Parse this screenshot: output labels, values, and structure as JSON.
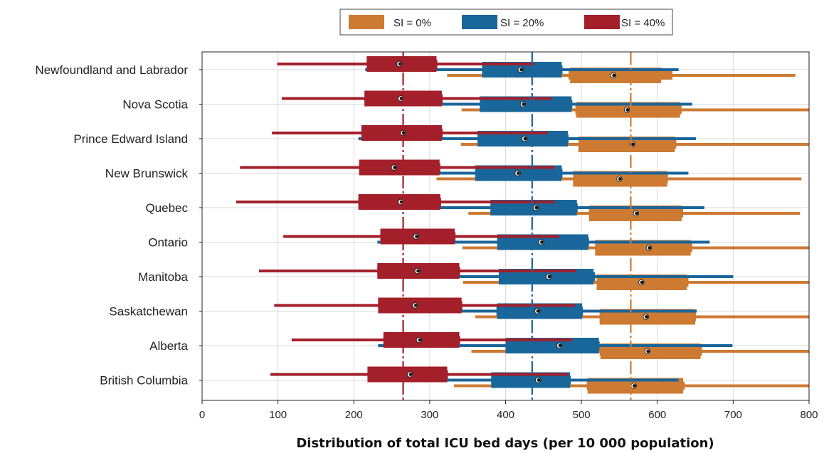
{
  "chart_data": {
    "type": "box",
    "title": "",
    "xlabel": "Distribution of total ICU bed days (per 10 000 population)",
    "ylabel": "",
    "xlim": [
      0,
      800
    ],
    "xticks": [
      0,
      100,
      200,
      300,
      400,
      500,
      600,
      700,
      800
    ],
    "grid": true,
    "legend_position": "top",
    "categories": [
      "Newfoundland and Labrador",
      "Nova Scotia",
      "Prince Edward Island",
      "New Brunswick",
      "Quebec",
      "Ontario",
      "Manitoba",
      "Saskatchewan",
      "Alberta",
      "British Columbia"
    ],
    "reference_lines": [
      {
        "series": "SI = 0%",
        "value": 565
      },
      {
        "series": "SI = 20%",
        "value": 435
      },
      {
        "series": "SI = 40%",
        "value": 265
      }
    ],
    "series": [
      {
        "name": "SI = 0%",
        "color": "#cd7a33",
        "data": [
          {
            "whisker": [
              323,
              782
            ],
            "box": [
              485,
              605
            ],
            "inner": [
              483,
              620
            ],
            "point": 542
          },
          {
            "whisker": [
              342,
              800
            ],
            "box": [
              493,
              630
            ],
            "inner": [
              492,
              632
            ],
            "point": 560
          },
          {
            "whisker": [
              341,
              800
            ],
            "box": [
              496,
              623
            ],
            "inner": [
              497,
              625
            ],
            "point": 567
          },
          {
            "whisker": [
              309,
              790
            ],
            "box": [
              489,
              613
            ],
            "inner": [
              489,
              614
            ],
            "point": 550
          },
          {
            "whisker": [
              351,
              788
            ],
            "box": [
              510,
              632
            ],
            "inner": [
              510,
              634
            ],
            "point": 572
          },
          {
            "whisker": [
              343,
              800
            ],
            "box": [
              518,
              644
            ],
            "inner": [
              520,
              646
            ],
            "point": 589
          },
          {
            "whisker": [
              344,
              800
            ],
            "box": [
              520,
              639
            ],
            "inner": [
              521,
              641
            ],
            "point": 579
          },
          {
            "whisker": [
              360,
              800
            ],
            "box": [
              524,
              650
            ],
            "inner": [
              524,
              651
            ],
            "point": 585
          },
          {
            "whisker": [
              355,
              800
            ],
            "box": [
              525,
              657
            ],
            "inner": [
              524,
              659
            ],
            "point": 587
          },
          {
            "whisker": [
              332,
              800
            ],
            "box": [
              508,
              634
            ],
            "inner": [
              507,
              636
            ],
            "point": 569
          }
        ]
      },
      {
        "name": "SI = 20%",
        "color": "#19669a",
        "data": [
          {
            "whisker": [
              215,
              628
            ],
            "box": [
              369,
              474
            ],
            "inner": [
              370,
              475
            ],
            "point": 420
          },
          {
            "whisker": [
              220,
              646
            ],
            "box": [
              366,
              487
            ],
            "inner": [
              367,
              488
            ],
            "point": 423
          },
          {
            "whisker": [
              206,
              651
            ],
            "box": [
              363,
              482
            ],
            "inner": [
              363,
              483
            ],
            "point": 425
          },
          {
            "whisker": [
              224,
              641
            ],
            "box": [
              360,
              474
            ],
            "inner": [
              360,
              475
            ],
            "point": 416
          },
          {
            "whisker": [
              229,
              662
            ],
            "box": [
              380,
              494
            ],
            "inner": [
              381,
              495
            ],
            "point": 440
          },
          {
            "whisker": [
              231,
              669
            ],
            "box": [
              389,
              509
            ],
            "inner": [
              389,
              510
            ],
            "point": 447
          },
          {
            "whisker": [
              250,
              700
            ],
            "box": [
              391,
              516
            ],
            "inner": [
              392,
              518
            ],
            "point": 457
          },
          {
            "whisker": [
              239,
              652
            ],
            "box": [
              389,
              501
            ],
            "inner": [
              388,
              502
            ],
            "point": 442
          },
          {
            "whisker": [
              232,
              699
            ],
            "box": [
              400,
              523
            ],
            "inner": [
              400,
              524
            ],
            "point": 471
          },
          {
            "whisker": [
              227,
              628
            ],
            "box": [
              381,
              485
            ],
            "inner": [
              382,
              486
            ],
            "point": 443
          }
        ]
      },
      {
        "name": "SI = 40%",
        "color": "#a31f2a",
        "data": [
          {
            "whisker": [
              99,
              438
            ],
            "box": [
              217,
              309
            ],
            "inner": [
              217,
              310
            ],
            "point": 260
          },
          {
            "whisker": [
              105,
              461
            ],
            "box": [
              214,
              316
            ],
            "inner": [
              214,
              317
            ],
            "point": 262
          },
          {
            "whisker": [
              92,
              456
            ],
            "box": [
              210,
              316
            ],
            "inner": [
              210,
              317
            ],
            "point": 265
          },
          {
            "whisker": [
              50,
              465
            ],
            "box": [
              207,
              313
            ],
            "inner": [
              207,
              314
            ],
            "point": 253
          },
          {
            "whisker": [
              45,
              465
            ],
            "box": [
              206,
              314
            ],
            "inner": [
              206,
              315
            ],
            "point": 262
          },
          {
            "whisker": [
              107,
              471
            ],
            "box": [
              235,
              333
            ],
            "inner": [
              235,
              334
            ],
            "point": 282
          },
          {
            "whisker": [
              75,
              493
            ],
            "box": [
              231,
              339
            ],
            "inner": [
              231,
              340
            ],
            "point": 284
          },
          {
            "whisker": [
              95,
              492
            ],
            "box": [
              232,
              342
            ],
            "inner": [
              232,
              343
            ],
            "point": 281
          },
          {
            "whisker": [
              118,
              488
            ],
            "box": [
              239,
              339
            ],
            "inner": [
              239,
              340
            ],
            "point": 286
          },
          {
            "whisker": [
              90,
              482
            ],
            "box": [
              218,
              323
            ],
            "inner": [
              218,
              324
            ],
            "point": 274
          }
        ]
      }
    ]
  }
}
